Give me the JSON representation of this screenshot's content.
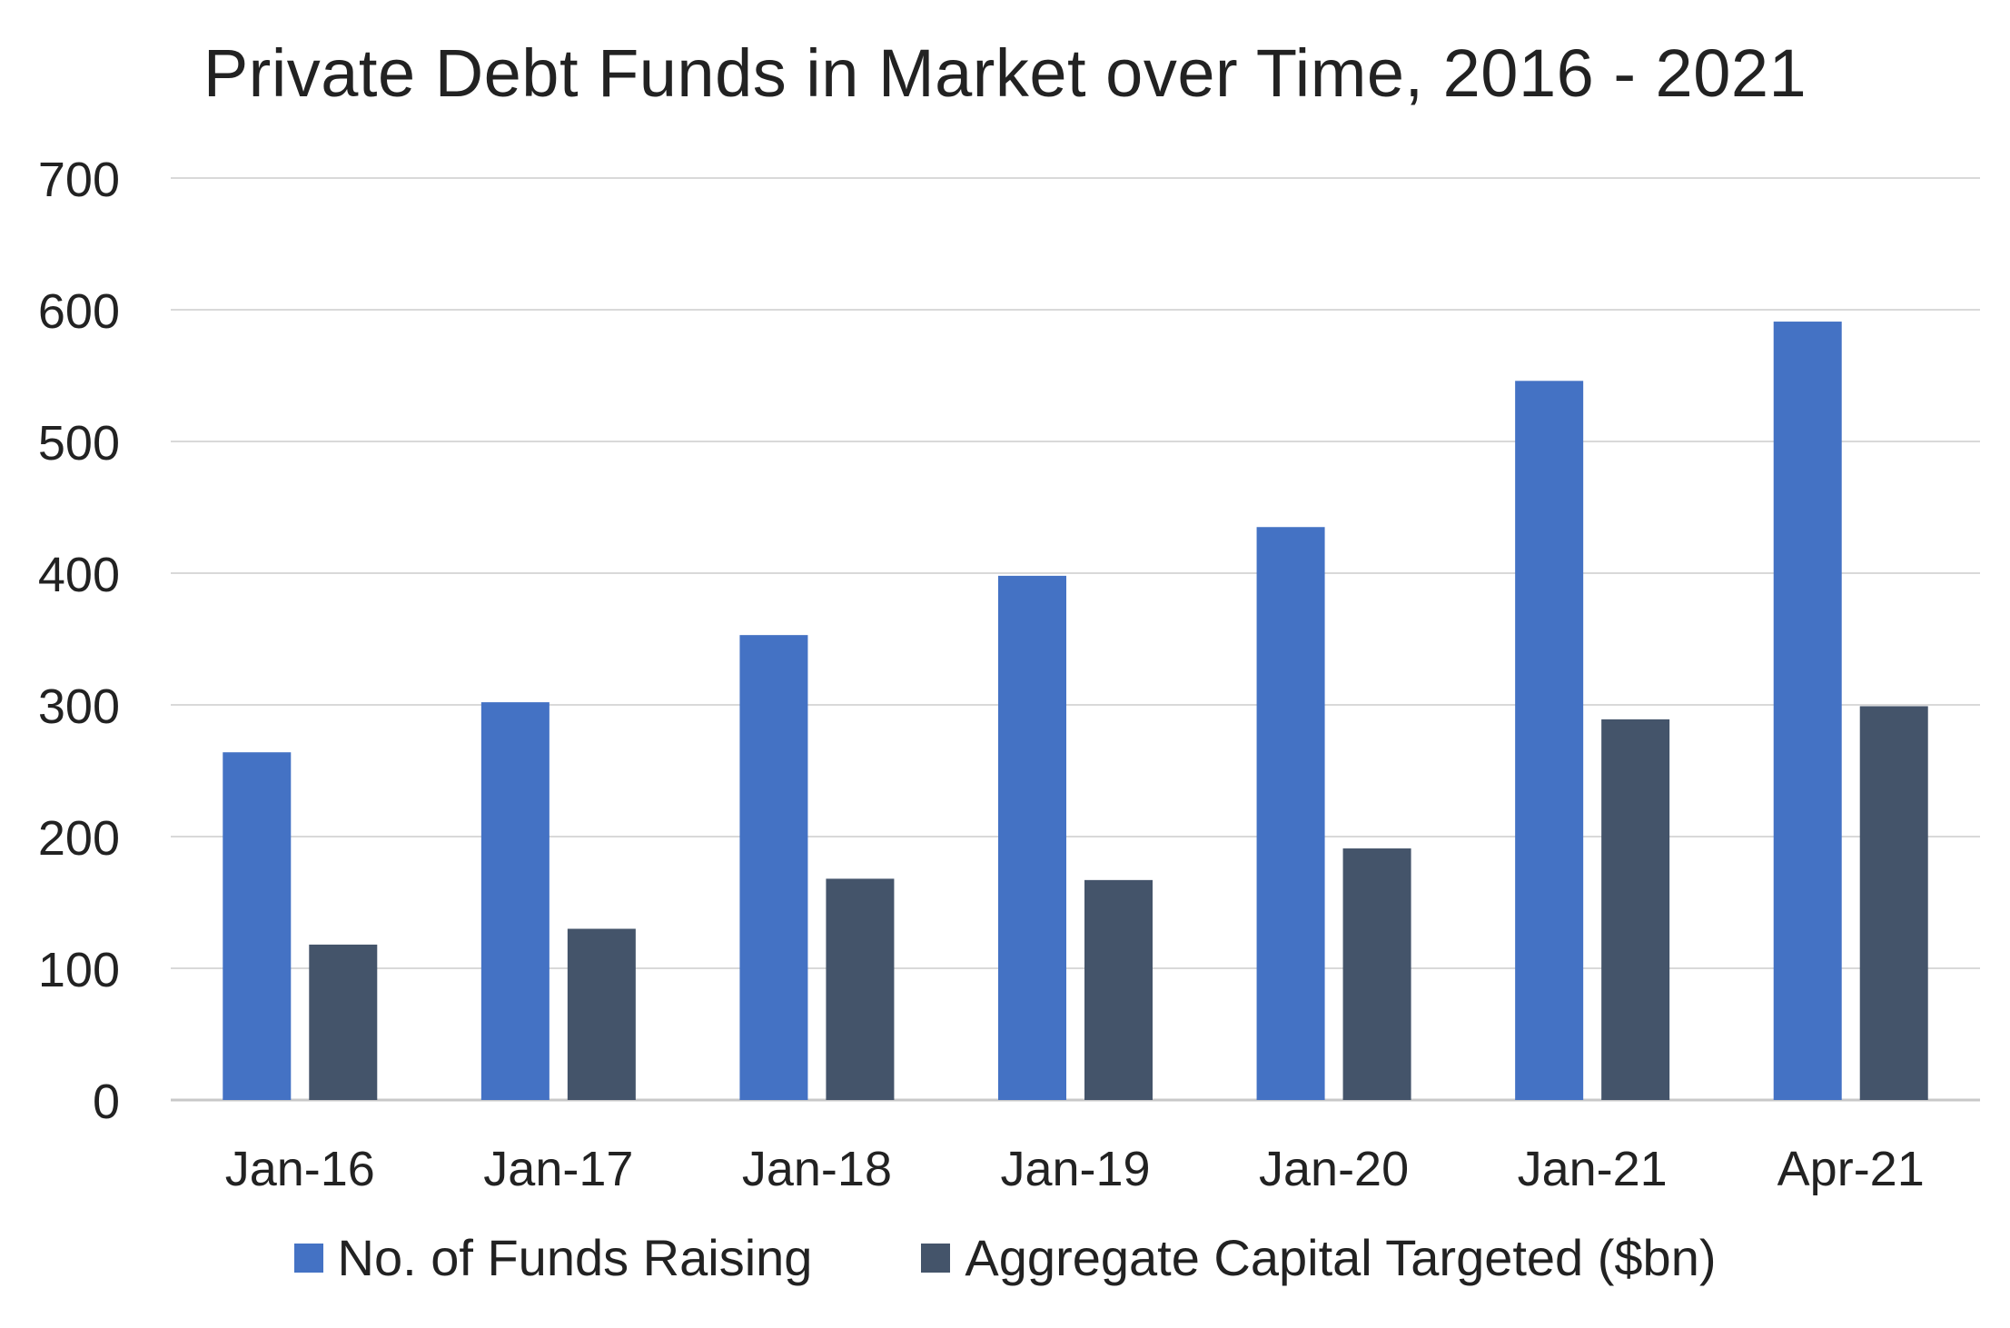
{
  "chart_data": {
    "type": "bar",
    "title": "Private Debt Funds in Market over Time, 2016 - 2021",
    "xlabel": "",
    "ylabel": "",
    "categories": [
      "Jan-16",
      "Jan-17",
      "Jan-18",
      "Jan-19",
      "Jan-20",
      "Jan-21",
      "Apr-21"
    ],
    "series": [
      {
        "name": "No. of Funds Raising",
        "color": "#4472c4",
        "values": [
          264,
          302,
          353,
          398,
          435,
          546,
          591
        ]
      },
      {
        "name": "Aggregate Capital Targeted ($bn)",
        "color": "#44546a",
        "values": [
          118,
          130,
          168,
          167,
          191,
          289,
          299
        ]
      }
    ],
    "ylim": [
      0,
      700
    ],
    "yticks": [
      "0",
      "100",
      "200",
      "300",
      "400",
      "500",
      "600",
      "700"
    ],
    "grid": true,
    "legend_position": "bottom"
  }
}
